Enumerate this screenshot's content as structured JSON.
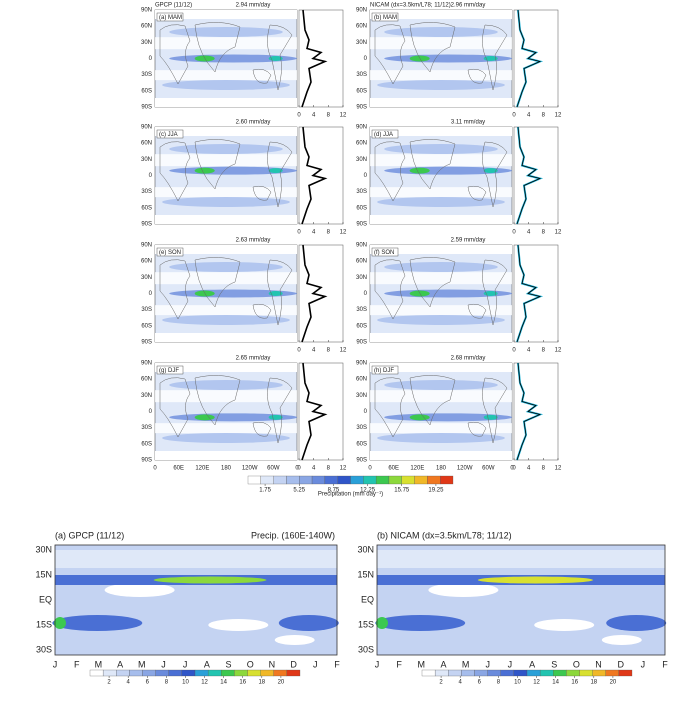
{
  "maps": {
    "columns": [
      "GPCP (11/12)",
      "NICAM (dx=3.5km/L78; 11/12)"
    ],
    "panels": [
      {
        "label": "(a) MAM",
        "mean": "2.94 mm/day"
      },
      {
        "label": "(b) MAM",
        "mean": "2.96 mm/day"
      },
      {
        "label": "(c) JJA",
        "mean": "2.60 mm/day"
      },
      {
        "label": "(d) JJA",
        "mean": "3.11 mm/day"
      },
      {
        "label": "(e) SON",
        "mean": "2.63 mm/day"
      },
      {
        "label": "(f) SON",
        "mean": "2.59 mm/day"
      },
      {
        "label": "(g) DJF",
        "mean": "2.65 mm/day"
      },
      {
        "label": "(h) DJF",
        "mean": "2.68 mm/day"
      }
    ],
    "lat_labels": [
      "90N",
      "60N",
      "30N",
      "0",
      "30S",
      "60S",
      "90S"
    ],
    "lon_labels": [
      "0",
      "60E",
      "120E",
      "180",
      "120W",
      "60W",
      "0"
    ],
    "profile_xlim": [
      0,
      12
    ],
    "profile_xticks": [
      0,
      4,
      8,
      12
    ],
    "colorbar": {
      "title": "Precipitation (mm day⁻¹)",
      "ticks": [
        1.75,
        5.25,
        8.75,
        12.25,
        15.75,
        19.25
      ],
      "lim": [
        0,
        21
      ],
      "colors": [
        "#ffffff",
        "#dfe8f8",
        "#c4d3f2",
        "#a6bdec",
        "#8aa6e4",
        "#6a8bdc",
        "#4a6fd4",
        "#2f55c8",
        "#2aa0d8",
        "#22c4b0",
        "#3cc850",
        "#8cd83c",
        "#d8e030",
        "#f0b828",
        "#f07820",
        "#e03818"
      ]
    }
  },
  "hovmoller": {
    "panels": [
      {
        "title": "(a) GPCP (11/12)",
        "subtitle": "Precip. (160E-140W)"
      },
      {
        "title": "(b) NICAM (dx=3.5km/L78; 11/12)"
      }
    ],
    "lat_labels": [
      "30N",
      "15N",
      "EQ",
      "15S",
      "30S"
    ],
    "months": [
      "J",
      "F",
      "M",
      "A",
      "M",
      "J",
      "J",
      "A",
      "S",
      "O",
      "N",
      "D",
      "J",
      "F"
    ],
    "colorbar": {
      "ticks": [
        2,
        4,
        6,
        8,
        10,
        12,
        14,
        16,
        18,
        20
      ],
      "lim": [
        0,
        22
      ],
      "colors": [
        "#ffffff",
        "#dfe8f8",
        "#c4d3f2",
        "#a6bdec",
        "#8aa6e4",
        "#6a8bdc",
        "#4a6fd4",
        "#2f55c8",
        "#2aa0d8",
        "#22c4b0",
        "#3cc850",
        "#8cd83c",
        "#d8e030",
        "#f0b828",
        "#f07820",
        "#e03818"
      ]
    }
  }
}
